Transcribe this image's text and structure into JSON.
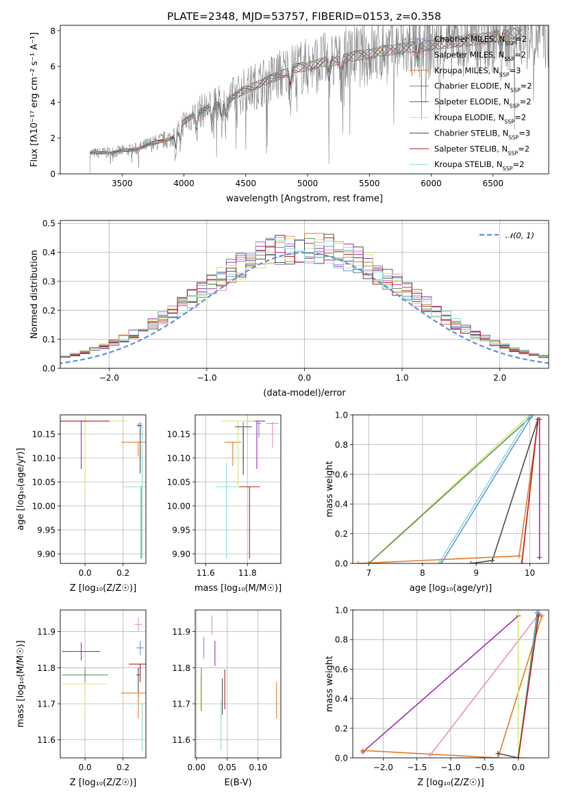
{
  "figure": {
    "title": "PLATE=2348, MJD=53757, FIBERID=0153, z=0.358"
  },
  "legend": {
    "series": [
      {
        "name": "Chabrier MILES, N",
        "sub": "SSP",
        "suffix": "=2",
        "color": "#6d8fe0"
      },
      {
        "name": "Salpeter MILES, N",
        "sub": "SSP",
        "suffix": "=2",
        "color": "#e88ec0"
      },
      {
        "name": "Kroupa MILES, N",
        "sub": "SSP",
        "suffix": "=3",
        "color": "#e07b28"
      },
      {
        "name": "Chabrier ELODIE, N",
        "sub": "SSP",
        "suffix": "=2",
        "color": "#5b8f5b"
      },
      {
        "name": "Salpeter ELODIE, N",
        "sub": "SSP",
        "suffix": "=2",
        "color": "#9c2ab4"
      },
      {
        "name": "Kroupa ELODIE, N",
        "sub": "SSP",
        "suffix": "=2",
        "color": "#cfe870"
      },
      {
        "name": "Chabrier STELIB, N",
        "sub": "SSP",
        "suffix": "=3",
        "color": "#4a4a4a"
      },
      {
        "name": "Salpeter STELIB, N",
        "sub": "SSP",
        "suffix": "=2",
        "color": "#b21d1d"
      },
      {
        "name": "Kroupa STELIB, N",
        "sub": "SSP",
        "suffix": "=2",
        "color": "#84dcd6"
      }
    ]
  },
  "chart_data": [
    {
      "id": "spectrum",
      "type": "line",
      "title": "PLATE=2348, MJD=53757, FIBERID=0153, z=0.358",
      "xlabel": "wavelength [Angstrom, rest frame]",
      "ylabel": "Flux [fλ10⁻¹⁷ erg cm⁻² s⁻¹ A⁻¹]",
      "xlim": [
        3000,
        6950
      ],
      "ylim": [
        0,
        8.3
      ],
      "xticks": [
        3500,
        4000,
        4500,
        5000,
        5500,
        6000,
        6500
      ],
      "yticks": [
        0,
        2,
        4,
        6,
        8
      ],
      "data_color": "#808080",
      "continuum": [
        [
          3240,
          1.15
        ],
        [
          3400,
          1.2
        ],
        [
          3600,
          1.35
        ],
        [
          3700,
          1.6
        ],
        [
          3800,
          1.8
        ],
        [
          3900,
          2.0
        ],
        [
          4000,
          2.9
        ],
        [
          4100,
          3.4
        ],
        [
          4200,
          3.7
        ],
        [
          4300,
          3.9
        ],
        [
          4400,
          4.3
        ],
        [
          4500,
          4.7
        ],
        [
          4600,
          5.0
        ],
        [
          4700,
          5.3
        ],
        [
          4800,
          5.6
        ],
        [
          4900,
          5.9
        ],
        [
          5000,
          6.0
        ],
        [
          5100,
          6.2
        ],
        [
          5200,
          6.3
        ],
        [
          5300,
          6.45
        ],
        [
          5400,
          6.6
        ],
        [
          5500,
          6.7
        ],
        [
          5600,
          6.85
        ],
        [
          5700,
          6.95
        ],
        [
          5800,
          7.05
        ],
        [
          5900,
          7.1
        ],
        [
          6000,
          7.2
        ],
        [
          6100,
          7.3
        ],
        [
          6200,
          7.4
        ],
        [
          6300,
          7.45
        ],
        [
          6400,
          7.55
        ],
        [
          6500,
          7.65
        ],
        [
          6600,
          7.75
        ],
        [
          6700,
          7.9
        ]
      ],
      "absorption_lines": [
        3934,
        3969,
        4102,
        4226,
        4304,
        4340,
        4861,
        5175,
        5270,
        5890,
        6563
      ]
    },
    {
      "id": "residuals",
      "type": "bar",
      "xlabel": "(data-model)/error",
      "ylabel": "Normed distribution",
      "xlim": [
        -2.5,
        2.5
      ],
      "ylim": [
        0,
        0.51
      ],
      "xticks": [
        -2,
        -1,
        0,
        1,
        2
      ],
      "yticks": [
        0.0,
        0.1,
        0.2,
        0.3,
        0.4,
        0.5
      ],
      "reference": {
        "name": "𝒩(0, 1)",
        "color": "#5b8fd9"
      },
      "bin_width": 0.1
    },
    {
      "id": "age-vs-Z",
      "type": "scatter",
      "xlabel": "Z [log₁₀(Z/Z☉)]",
      "ylabel": "age  [log₁₀(age/yr)]",
      "xlim": [
        -0.13,
        0.32
      ],
      "ylim": [
        9.88,
        10.19
      ],
      "xticks": [
        0.0,
        0.2
      ],
      "yticks": [
        9.9,
        9.95,
        10.0,
        10.05,
        10.1,
        10.15
      ],
      "points": [
        {
          "x": 0.29,
          "y": 10.172,
          "xerr": 0.01,
          "yerr": [
            0.005,
            0.004
          ],
          "c": 1
        },
        {
          "x": 0.28,
          "y": 10.168,
          "xerr": 0.01,
          "yerr": [
            0.004,
            0.004
          ],
          "c": 0
        },
        {
          "x": 0.28,
          "y": 10.133,
          "xerr": 0.09,
          "yerr": [
            0.03,
            0.001
          ],
          "c": 2
        },
        {
          "x": 0.295,
          "y": 10.04,
          "xerr": 0.05,
          "yerr": [
            0.15,
            0.001
          ],
          "c": 3
        },
        {
          "x": -0.02,
          "y": 10.177,
          "xerr": 0.01,
          "yerr": [
            0.1,
            0.001
          ],
          "c": 4
        },
        {
          "x": 0.0,
          "y": 10.177,
          "xerr": 0.22,
          "yerr": [
            0.15,
            0.001
          ],
          "c": 5
        },
        {
          "x": 0.29,
          "y": 10.168,
          "xerr": 0.01,
          "yerr": [
            0.1,
            0.001
          ],
          "c": 6
        },
        {
          "x": 0.0,
          "y": 10.177,
          "xerr": 0.13,
          "yerr": [
            0.001,
            0.001
          ],
          "c": 7
        },
        {
          "x": 0.3,
          "y": 10.04,
          "xerr": 0.1,
          "yerr": [
            0.15,
            0.13
          ],
          "c": 8
        }
      ]
    },
    {
      "id": "age-vs-mass",
      "type": "scatter",
      "xlabel": "mass [log₁₀(M/M☉)]",
      "ylabel": "",
      "xlim": [
        11.55,
        11.96
      ],
      "ylim": [
        9.88,
        10.19
      ],
      "xticks": [
        11.6,
        11.8
      ],
      "yticks": [
        9.9,
        9.95,
        10.0,
        10.05,
        10.1,
        10.15
      ],
      "points": [
        {
          "x": 11.855,
          "y": 10.172,
          "xerr": 0.01,
          "yerr": [
            0.03,
            0.005
          ],
          "c": 0
        },
        {
          "x": 11.92,
          "y": 10.172,
          "xerr": 0.03,
          "yerr": [
            0.05,
            0.004
          ],
          "c": 1
        },
        {
          "x": 11.73,
          "y": 10.133,
          "xerr": 0.04,
          "yerr": [
            0.05,
            0.001
          ],
          "c": 2
        },
        {
          "x": 11.78,
          "y": 10.165,
          "xerr": 0.03,
          "yerr": [
            0.08,
            0.01
          ],
          "c": 3
        },
        {
          "x": 11.845,
          "y": 10.177,
          "xerr": 0.04,
          "yerr": [
            0.1,
            0.001
          ],
          "c": 4
        },
        {
          "x": 11.755,
          "y": 10.177,
          "xerr": 0.08,
          "yerr": [
            0.14,
            0.001
          ],
          "c": 5
        },
        {
          "x": 11.78,
          "y": 10.165,
          "xerr": 0.04,
          "yerr": [
            0.1,
            0.001
          ],
          "c": 6
        },
        {
          "x": 11.81,
          "y": 10.04,
          "xerr": 0.05,
          "yerr": [
            0.15,
            0.001
          ],
          "c": 7
        },
        {
          "x": 11.7,
          "y": 10.04,
          "xerr": 0.05,
          "yerr": [
            0.15,
            0.05
          ],
          "c": 8
        }
      ]
    },
    {
      "id": "massweight-vs-age",
      "type": "line",
      "xlabel": "age  [log₁₀(age/yr)]",
      "ylabel": "mass weight",
      "xlim": [
        6.7,
        10.35
      ],
      "ylim": [
        0,
        1.0
      ],
      "xticks": [
        7,
        8,
        9,
        10
      ],
      "yticks": [
        0.0,
        0.2,
        0.4,
        0.6,
        0.8,
        1.0
      ],
      "series": [
        {
          "c": 5,
          "points": [
            [
              7.0,
              0.0
            ],
            [
              10.0,
              1.0
            ]
          ]
        },
        {
          "c": 3,
          "points": [
            [
              7.0,
              0.0
            ],
            [
              10.0,
              0.98
            ]
          ]
        },
        {
          "c": 8,
          "points": [
            [
              8.3,
              0.0
            ],
            [
              10.0,
              1.0
            ]
          ]
        },
        {
          "c": 0,
          "points": [
            [
              8.35,
              0.0
            ],
            [
              10.05,
              1.0
            ]
          ]
        },
        {
          "c": 6,
          "points": [
            [
              8.9,
              0.0
            ],
            [
              9.3,
              0.02
            ],
            [
              10.15,
              0.97
            ]
          ]
        },
        {
          "c": 2,
          "points": [
            [
              6.8,
              0.0
            ],
            [
              9.8,
              0.05
            ],
            [
              10.15,
              0.95
            ]
          ]
        },
        {
          "c": 1,
          "points": [
            [
              9.85,
              0.0
            ],
            [
              10.15,
              0.97
            ]
          ]
        },
        {
          "c": 4,
          "points": [
            [
              10.18,
              0.04
            ],
            [
              10.18,
              0.97
            ]
          ]
        },
        {
          "c": 7,
          "points": [
            [
              9.85,
              0.0
            ],
            [
              10.15,
              0.97
            ]
          ]
        }
      ]
    },
    {
      "id": "mass-vs-Z",
      "type": "scatter",
      "xlabel": "Z [log₁₀(Z/Z☉)]",
      "ylabel": "mass [log₁₀(M/M☉)]",
      "xlim": [
        -0.13,
        0.32
      ],
      "ylim": [
        11.55,
        11.96
      ],
      "xticks": [
        0.0,
        0.2
      ],
      "yticks": [
        11.6,
        11.7,
        11.8,
        11.9
      ],
      "points": [
        {
          "x": 0.28,
          "y": 11.92,
          "xerr": 0.02,
          "yerr": [
            0.02,
            0.02
          ],
          "c": 1
        },
        {
          "x": 0.29,
          "y": 11.855,
          "xerr": 0.02,
          "yerr": [
            0.02,
            0.02
          ],
          "c": 0
        },
        {
          "x": -0.02,
          "y": 11.845,
          "xerr": 0.1,
          "yerr": [
            0.025,
            0.025
          ],
          "c": 4
        },
        {
          "x": 0.29,
          "y": 11.81,
          "xerr": 0.06,
          "yerr": [
            0.05,
            0.001
          ],
          "c": 7
        },
        {
          "x": 0.0,
          "y": 11.78,
          "xerr": 0.12,
          "yerr": [
            0.02,
            0.02
          ],
          "c": 3
        },
        {
          "x": 0.28,
          "y": 11.78,
          "xerr": 0.01,
          "yerr": [
            0.06,
            0.02
          ],
          "c": 6
        },
        {
          "x": 0.0,
          "y": 11.755,
          "xerr": 0.12,
          "yerr": [
            0.08,
            0.001
          ],
          "c": 5
        },
        {
          "x": 0.28,
          "y": 11.73,
          "xerr": 0.09,
          "yerr": [
            0.07,
            0.001
          ],
          "c": 2
        },
        {
          "x": 0.3,
          "y": 11.7,
          "xerr": 0.1,
          "yerr": [
            0.13,
            0.001
          ],
          "c": 8
        }
      ]
    },
    {
      "id": "mass-vs-EBV",
      "type": "scatter",
      "xlabel": "E(B-V)",
      "ylabel": "",
      "xlim": [
        -0.002,
        0.137
      ],
      "ylim": [
        11.55,
        11.96
      ],
      "xticks": [
        0.0,
        0.05,
        0.1
      ],
      "yticks": [
        11.6,
        11.7,
        11.8,
        11.9
      ],
      "points": [
        {
          "x": 0.025,
          "y": 11.92,
          "yerr": [
            0.03,
            0.025
          ],
          "c": 1
        },
        {
          "x": 0.012,
          "y": 11.855,
          "yerr": [
            0.03,
            0.03
          ],
          "c": 0
        },
        {
          "x": 0.03,
          "y": 11.845,
          "yerr": [
            0.04,
            0.03
          ],
          "c": 4
        },
        {
          "x": 0.046,
          "y": 11.735,
          "yerr": [
            0.05,
            0.06
          ],
          "c": 7
        },
        {
          "x": 0.008,
          "y": 11.73,
          "yerr": [
            0.05,
            0.07
          ],
          "c": 3
        },
        {
          "x": 0.042,
          "y": 11.72,
          "yerr": [
            0.05,
            0.05
          ],
          "c": 6
        },
        {
          "x": 0.007,
          "y": 11.72,
          "yerr": [
            0.04,
            0.06
          ],
          "c": 5
        },
        {
          "x": 0.13,
          "y": 11.71,
          "yerr": [
            0.05,
            0.05
          ],
          "c": 2
        },
        {
          "x": 0.04,
          "y": 11.64,
          "yerr": [
            0.07,
            0.07
          ],
          "c": 8
        }
      ]
    },
    {
      "id": "massweight-vs-Z",
      "type": "line",
      "xlabel": "Z [log₁₀(Z/Z☉)]",
      "ylabel": "mass weight",
      "xlim": [
        -2.45,
        0.45
      ],
      "ylim": [
        0,
        1.0
      ],
      "xticks": [
        -2.0,
        -1.5,
        -1.0,
        -0.5,
        0.0
      ],
      "yticks": [
        0.0,
        0.2,
        0.4,
        0.6,
        0.8,
        1.0
      ],
      "series": [
        {
          "c": 4,
          "points": [
            [
              -2.3,
              0.04
            ],
            [
              0.0,
              0.96
            ]
          ]
        },
        {
          "c": 2,
          "points": [
            [
              -2.3,
              0.05
            ],
            [
              -0.3,
              0.0
            ],
            [
              0.35,
              0.96
            ]
          ]
        },
        {
          "c": 1,
          "points": [
            [
              -1.3,
              0.02
            ],
            [
              0.3,
              0.97
            ]
          ]
        },
        {
          "c": 6,
          "points": [
            [
              -0.3,
              0.03
            ],
            [
              0.0,
              0.0
            ],
            [
              0.3,
              0.97
            ]
          ]
        },
        {
          "c": 5,
          "points": [
            [
              0.0,
              0.0
            ],
            [
              0.0,
              1.0
            ]
          ]
        },
        {
          "c": 3,
          "points": [
            [
              0.0,
              0.0
            ],
            [
              0.28,
              0.98
            ]
          ]
        },
        {
          "c": 8,
          "points": [
            [
              0.0,
              0.0
            ],
            [
              0.3,
              1.0
            ]
          ]
        },
        {
          "c": 0,
          "points": [
            [
              0.0,
              0.0
            ],
            [
              0.3,
              0.98
            ]
          ]
        },
        {
          "c": 7,
          "points": [
            [
              0.0,
              0.0
            ],
            [
              0.3,
              0.96
            ]
          ]
        }
      ]
    }
  ]
}
